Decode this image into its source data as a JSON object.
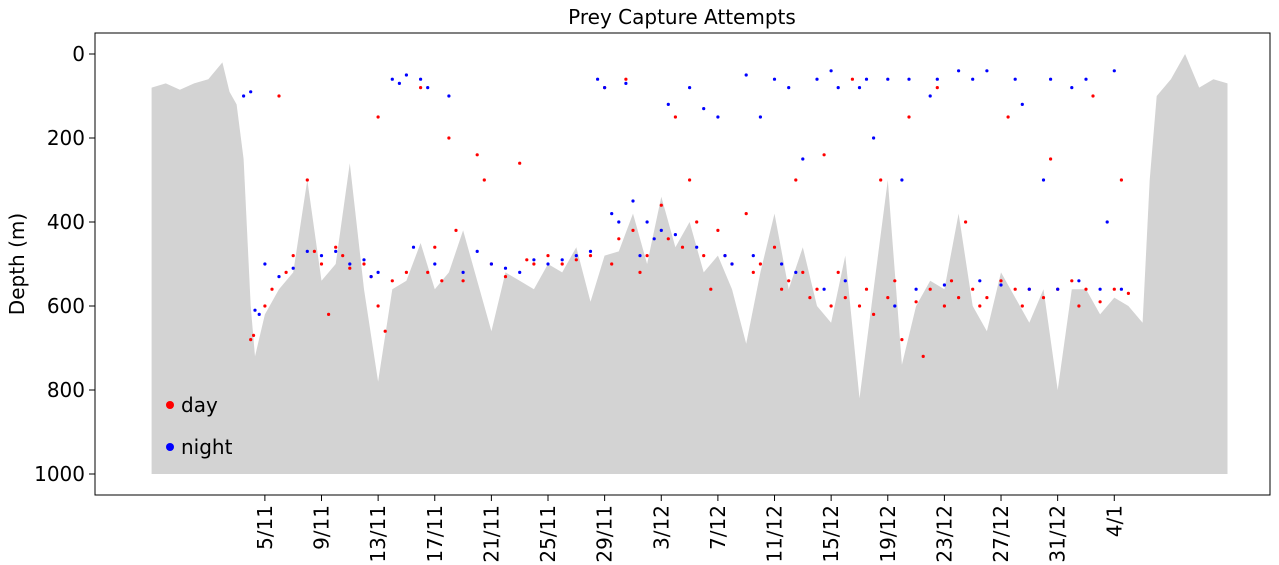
{
  "chart_data": {
    "type": "scatter",
    "title": "Prey Capture Attempts",
    "y_label": "Depth (m)",
    "xlim": [
      -7,
      76
    ],
    "ylim": [
      1050,
      -50
    ],
    "yticks": [
      0,
      200,
      400,
      600,
      800,
      1000
    ],
    "xticks": [
      {
        "value": 5,
        "label": "5/11"
      },
      {
        "value": 9,
        "label": "9/11"
      },
      {
        "value": 13,
        "label": "13/11"
      },
      {
        "value": 17,
        "label": "17/11"
      },
      {
        "value": 21,
        "label": "21/11"
      },
      {
        "value": 25,
        "label": "25/11"
      },
      {
        "value": 29,
        "label": "29/11"
      },
      {
        "value": 33,
        "label": "3/12"
      },
      {
        "value": 37,
        "label": "7/12"
      },
      {
        "value": 41,
        "label": "11/12"
      },
      {
        "value": 45,
        "label": "15/12"
      },
      {
        "value": 49,
        "label": "19/12"
      },
      {
        "value": 53,
        "label": "23/12"
      },
      {
        "value": 57,
        "label": "27/12"
      },
      {
        "value": 61,
        "label": "31/12"
      },
      {
        "value": 65,
        "label": "4/1"
      }
    ],
    "legend": "lower left",
    "area": {
      "color": "#d3d3d3",
      "x": [
        -3,
        -2,
        -1,
        0,
        1,
        2,
        2.5,
        3,
        3.5,
        4,
        4.3,
        5,
        6,
        7,
        8,
        9,
        10,
        11,
        12,
        13,
        14,
        15,
        16,
        17,
        18,
        19,
        20,
        21,
        22,
        23,
        24,
        25,
        26,
        27,
        28,
        29,
        30,
        31,
        32,
        33,
        34,
        35,
        36,
        37,
        38,
        39,
        40,
        41,
        42,
        43,
        44,
        45,
        46,
        47,
        48,
        49,
        50,
        51,
        52,
        53,
        54,
        55,
        56,
        57,
        58,
        59,
        60,
        61,
        62,
        63,
        64,
        65,
        66,
        67,
        67.5,
        68,
        69,
        70,
        71,
        72,
        73
      ],
      "values": [
        80,
        70,
        85,
        70,
        60,
        20,
        90,
        120,
        250,
        600,
        720,
        620,
        560,
        520,
        300,
        540,
        500,
        260,
        560,
        780,
        560,
        540,
        450,
        560,
        520,
        420,
        540,
        660,
        520,
        540,
        560,
        500,
        520,
        460,
        590,
        480,
        470,
        380,
        500,
        340,
        460,
        400,
        520,
        480,
        560,
        690,
        520,
        380,
        560,
        460,
        600,
        640,
        480,
        820,
        560,
        300,
        740,
        600,
        540,
        560,
        380,
        600,
        660,
        520,
        580,
        640,
        560,
        800,
        560,
        560,
        620,
        580,
        600,
        640,
        300,
        100,
        60,
        0,
        80,
        60,
        70
      ]
    },
    "series": [
      {
        "name": "day",
        "color": "#ff0000",
        "x": [
          4,
          4.2,
          5,
          5.5,
          6,
          6.5,
          7,
          8,
          8.5,
          9,
          9.5,
          10,
          10.5,
          11,
          12,
          12.5,
          13,
          13,
          13.5,
          14,
          15,
          16,
          16.5,
          17,
          17.5,
          18,
          18.5,
          19,
          20,
          20.5,
          21,
          22,
          23,
          23.5,
          24,
          25,
          26,
          27,
          28,
          29,
          29.5,
          30,
          30.5,
          31,
          31.5,
          32,
          33,
          33.5,
          34,
          34.5,
          35,
          35.5,
          36,
          36.5,
          37,
          37.5,
          38,
          39,
          39.5,
          40,
          41,
          41.5,
          42,
          42.5,
          43,
          43.5,
          44,
          44.5,
          45,
          45.5,
          46,
          46.5,
          47,
          47.5,
          48,
          48.5,
          49,
          49.5,
          50,
          50.5,
          51,
          51.5,
          52,
          52.5,
          53,
          53.5,
          54,
          54.5,
          55,
          55.5,
          56,
          57,
          57.5,
          58,
          58.5,
          59,
          60,
          60.5,
          61,
          62,
          62.5,
          63,
          63.5,
          64,
          65,
          65.5,
          66
        ],
        "values": [
          680,
          670,
          600,
          560,
          100,
          520,
          480,
          300,
          470,
          500,
          620,
          460,
          480,
          510,
          500,
          530,
          150,
          600,
          660,
          540,
          520,
          80,
          520,
          460,
          540,
          200,
          420,
          540,
          240,
          300,
          500,
          530,
          260,
          490,
          500,
          480,
          500,
          490,
          480,
          80,
          500,
          440,
          60,
          420,
          520,
          480,
          360,
          440,
          150,
          460,
          300,
          400,
          480,
          560,
          420,
          480,
          500,
          380,
          520,
          500,
          460,
          560,
          540,
          300,
          520,
          580,
          560,
          240,
          600,
          520,
          580,
          60,
          600,
          560,
          620,
          300,
          580,
          540,
          680,
          150,
          590,
          720,
          560,
          80,
          600,
          540,
          580,
          400,
          560,
          600,
          580,
          540,
          150,
          560,
          600,
          560,
          580,
          250,
          560,
          540,
          600,
          560,
          100,
          590,
          560,
          300,
          570
        ]
      },
      {
        "name": "night",
        "color": "#0000ff",
        "x": [
          3.5,
          4,
          4.3,
          4.6,
          5,
          6,
          7,
          8,
          9,
          10,
          11,
          12,
          12.5,
          13,
          14,
          14.5,
          15,
          15.5,
          16,
          16.5,
          17,
          18,
          19,
          20,
          21,
          22,
          23,
          24,
          25,
          26,
          27,
          28,
          28.5,
          29,
          29.5,
          30,
          30.5,
          31,
          31.5,
          32,
          32.5,
          33,
          33.5,
          34,
          35,
          35.5,
          36,
          37,
          37.5,
          38,
          39,
          39.5,
          40,
          41,
          41.5,
          42,
          42.5,
          43,
          44,
          44.5,
          45,
          45.5,
          46,
          47,
          47.5,
          48,
          49,
          49.5,
          50,
          50.5,
          51,
          52,
          52.5,
          53,
          54,
          55,
          55.5,
          56,
          57,
          58,
          58.5,
          59,
          60,
          60.5,
          61,
          62,
          62.5,
          63,
          64,
          64.5,
          65,
          65.5
        ],
        "values": [
          100,
          90,
          610,
          620,
          500,
          530,
          510,
          470,
          480,
          470,
          500,
          490,
          530,
          520,
          60,
          70,
          50,
          460,
          60,
          80,
          500,
          100,
          520,
          470,
          500,
          510,
          520,
          490,
          500,
          490,
          480,
          470,
          60,
          80,
          380,
          400,
          70,
          350,
          480,
          400,
          440,
          420,
          120,
          430,
          80,
          460,
          130,
          150,
          480,
          500,
          50,
          480,
          150,
          60,
          500,
          80,
          520,
          250,
          60,
          560,
          40,
          80,
          540,
          80,
          60,
          200,
          60,
          600,
          300,
          60,
          560,
          100,
          60,
          550,
          40,
          60,
          540,
          40,
          550,
          60,
          120,
          560,
          300,
          60,
          560,
          80,
          540,
          60,
          560,
          400,
          40,
          560
        ]
      }
    ]
  }
}
